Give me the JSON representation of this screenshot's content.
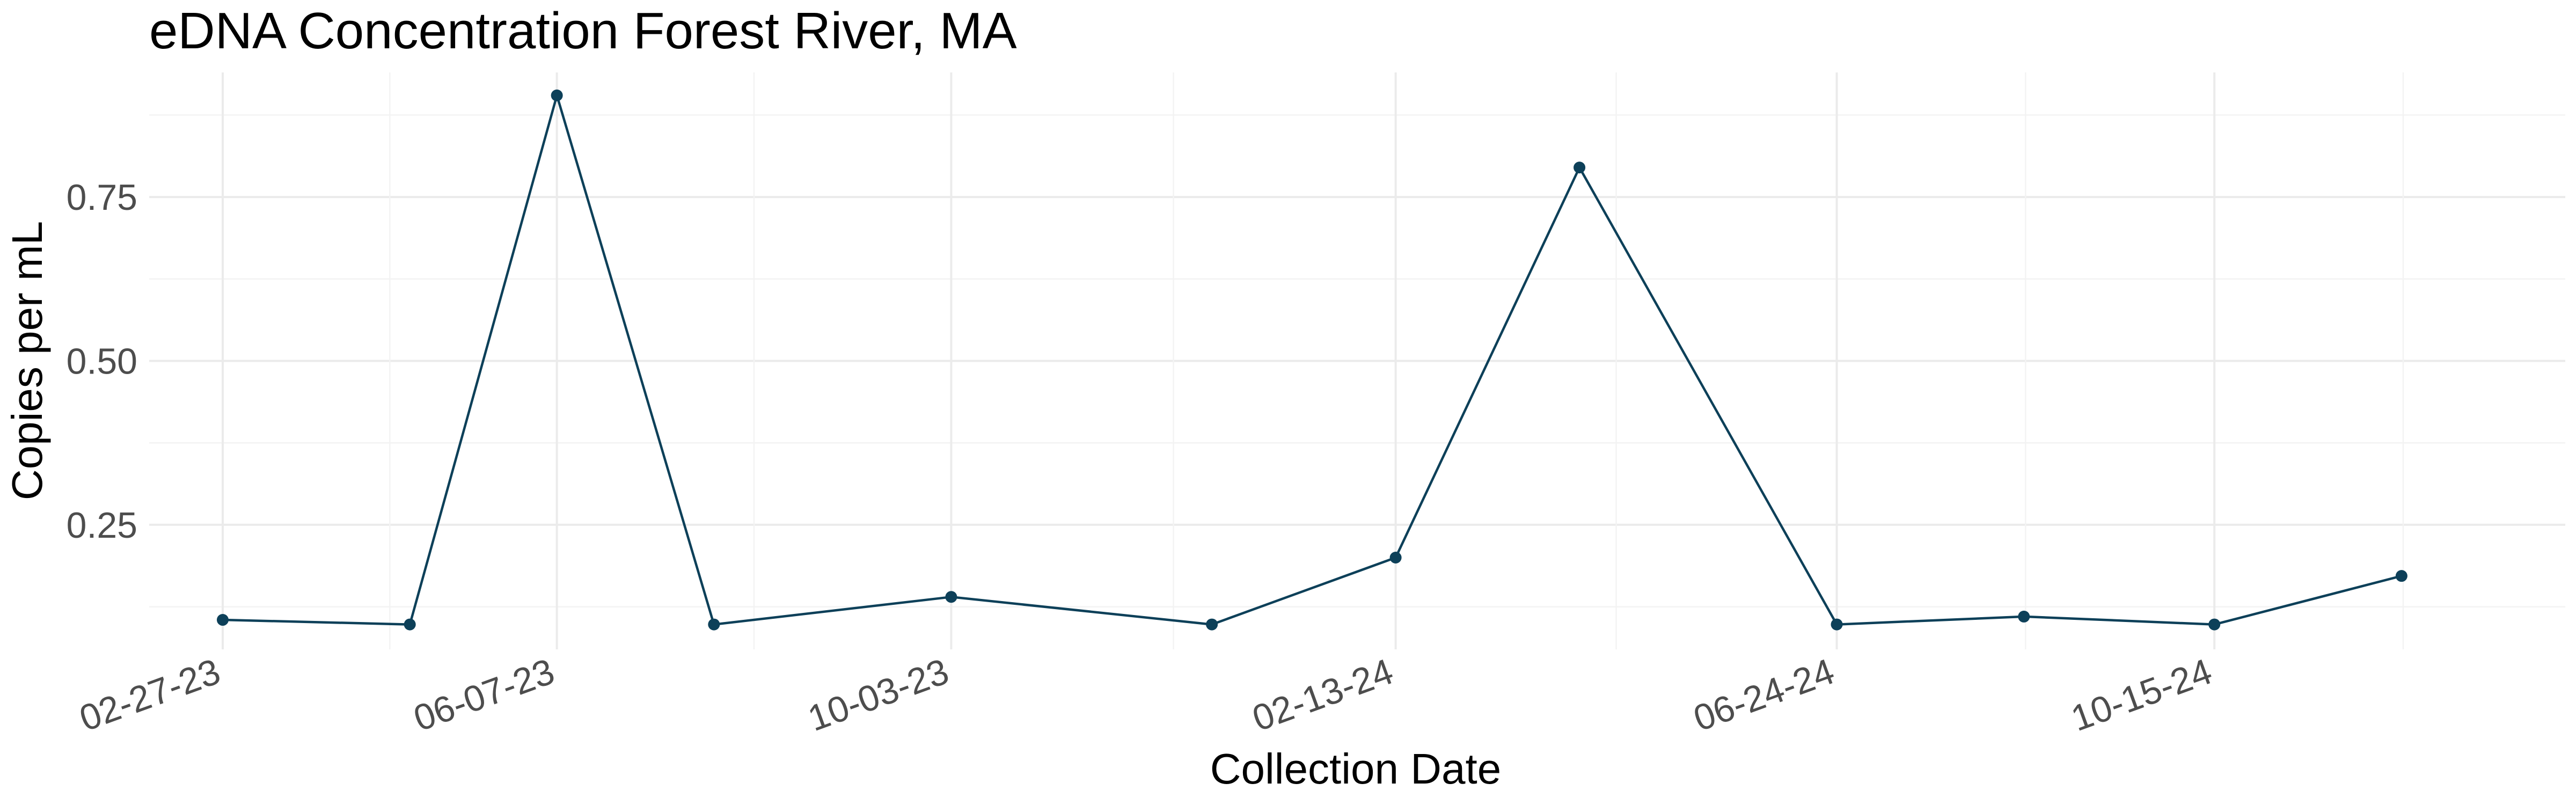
{
  "chart_data": {
    "type": "line",
    "title": "eDNA Concentration Forest River, MA",
    "xlabel": "Collection Date",
    "ylabel": "Copies per mL",
    "x_scale": "date",
    "x_tick_labels": [
      "02-27-23",
      "06-07-23",
      "10-03-23",
      "02-13-24",
      "06-24-24",
      "10-15-24"
    ],
    "x_tick_dates": [
      "2023-02-27",
      "2023-06-07",
      "2023-10-03",
      "2024-02-13",
      "2024-06-24",
      "2024-10-15"
    ],
    "xlim": [
      "2023-02-05",
      "2025-01-28"
    ],
    "y_ticks": [
      0.25,
      0.5,
      0.75
    ],
    "y_tick_labels": [
      "0.25",
      "0.50",
      "0.75"
    ],
    "ylim": [
      0.06,
      0.94
    ],
    "grid": true,
    "line_color": "#0d4059",
    "series": [
      {
        "points": [
          {
            "x": "2023-02-27",
            "y": 0.105
          },
          {
            "x": "2023-04-24",
            "y": 0.098
          },
          {
            "x": "2023-06-07",
            "y": 0.905
          },
          {
            "x": "2023-07-24",
            "y": 0.098
          },
          {
            "x": "2023-10-03",
            "y": 0.14
          },
          {
            "x": "2023-12-20",
            "y": 0.098
          },
          {
            "x": "2024-02-13",
            "y": 0.2
          },
          {
            "x": "2024-04-08",
            "y": 0.795
          },
          {
            "x": "2024-06-24",
            "y": 0.098
          },
          {
            "x": "2024-08-19",
            "y": 0.11
          },
          {
            "x": "2024-10-15",
            "y": 0.098
          },
          {
            "x": "2024-12-10",
            "y": 0.172
          }
        ]
      }
    ]
  }
}
